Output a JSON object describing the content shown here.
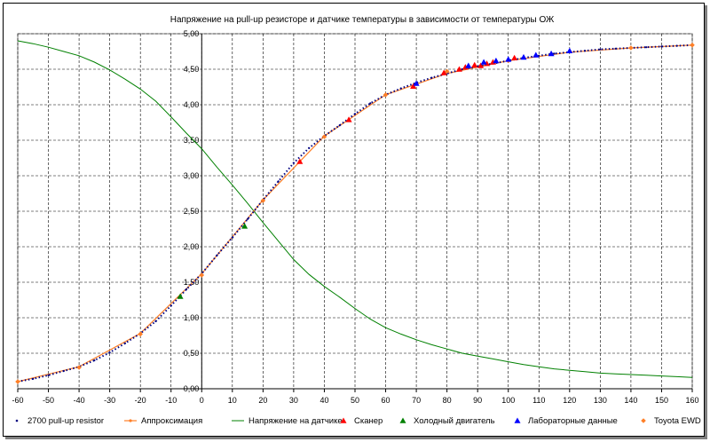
{
  "chart_data": {
    "type": "scatter",
    "title": "Напряжение на pull-up резисторе и датчике температуры в зависимости от температуры ОЖ",
    "xlim": [
      -60,
      160
    ],
    "ylim": [
      0,
      5
    ],
    "x_ticks": [
      -60,
      -50,
      -40,
      -30,
      -20,
      -10,
      0,
      10,
      20,
      30,
      40,
      50,
      60,
      70,
      80,
      90,
      100,
      110,
      120,
      130,
      140,
      150,
      160
    ],
    "y_ticks": [
      "0,00",
      "0,50",
      "1,00",
      "1,50",
      "2,00",
      "2,50",
      "3,00",
      "3,50",
      "4,00",
      "4,50",
      "5,00"
    ],
    "grid": true,
    "legend_position": "bottom",
    "series": [
      {
        "name": "2700 pull-up resistor",
        "style": "dotted",
        "color": "#000080",
        "x": [
          -60,
          -55,
          -50,
          -45,
          -40,
          -35,
          -30,
          -25,
          -20,
          -15,
          -10,
          -5,
          0,
          5,
          10,
          15,
          20,
          25,
          30,
          35,
          40,
          45,
          50,
          55,
          60,
          65,
          70,
          75,
          80,
          85,
          90,
          95,
          100,
          105,
          110,
          115,
          120,
          125,
          130,
          135,
          140,
          145,
          150,
          155,
          160
        ],
        "y": [
          0.1,
          0.14,
          0.19,
          0.25,
          0.31,
          0.4,
          0.51,
          0.64,
          0.78,
          0.95,
          1.17,
          1.4,
          1.62,
          1.88,
          2.13,
          2.39,
          2.66,
          2.92,
          3.18,
          3.39,
          3.56,
          3.71,
          3.87,
          4.02,
          4.14,
          4.23,
          4.31,
          4.38,
          4.44,
          4.5,
          4.54,
          4.58,
          4.62,
          4.66,
          4.69,
          4.72,
          4.74,
          4.76,
          4.78,
          4.79,
          4.8,
          4.81,
          4.82,
          4.83,
          4.84
        ]
      },
      {
        "name": "Аппроксимация",
        "style": "line-markers",
        "color": "#ff7f27",
        "x": [
          -60,
          -40,
          -20,
          0,
          20,
          40,
          60,
          80,
          100,
          120,
          140,
          160
        ],
        "y": [
          0.1,
          0.31,
          0.78,
          1.62,
          2.66,
          3.56,
          4.14,
          4.44,
          4.62,
          4.74,
          4.8,
          4.84
        ]
      },
      {
        "name": "Напряжение на датчике",
        "style": "line",
        "color": "#008000",
        "x": [
          -60,
          -55,
          -50,
          -45,
          -40,
          -35,
          -30,
          -25,
          -20,
          -15,
          -10,
          -5,
          0,
          5,
          10,
          15,
          20,
          25,
          30,
          35,
          40,
          45,
          50,
          55,
          60,
          65,
          70,
          75,
          80,
          85,
          90,
          95,
          100,
          105,
          110,
          115,
          120,
          125,
          130,
          135,
          140,
          145,
          150,
          155,
          160
        ],
        "y": [
          4.9,
          4.86,
          4.81,
          4.75,
          4.69,
          4.6,
          4.49,
          4.36,
          4.22,
          4.05,
          3.83,
          3.6,
          3.38,
          3.12,
          2.87,
          2.61,
          2.34,
          2.08,
          1.82,
          1.61,
          1.44,
          1.29,
          1.13,
          0.98,
          0.86,
          0.77,
          0.69,
          0.62,
          0.56,
          0.5,
          0.46,
          0.42,
          0.38,
          0.34,
          0.31,
          0.28,
          0.26,
          0.24,
          0.22,
          0.21,
          0.2,
          0.19,
          0.18,
          0.17,
          0.16
        ]
      },
      {
        "name": "Сканер",
        "style": "triangles",
        "color": "#ff0000",
        "x": [
          32,
          48,
          69,
          79,
          84,
          86,
          89,
          91,
          93,
          95,
          102
        ],
        "y": [
          3.2,
          3.79,
          4.26,
          4.45,
          4.5,
          4.53,
          4.56,
          4.55,
          4.58,
          4.6,
          4.66
        ]
      },
      {
        "name": "Холодный двигатель",
        "style": "triangles",
        "color": "#008000",
        "x": [
          -7,
          14
        ],
        "y": [
          1.3,
          2.29
        ]
      },
      {
        "name": "Лабораторные данные",
        "style": "triangles",
        "color": "#0000ff",
        "x": [
          70,
          87,
          92,
          96,
          100,
          105,
          109,
          114,
          120
        ],
        "y": [
          4.3,
          4.55,
          4.6,
          4.62,
          4.64,
          4.67,
          4.7,
          4.72,
          4.76
        ]
      },
      {
        "name": "Toyota EWD",
        "style": "diamonds",
        "color": "#ff7f27",
        "x": [
          -60,
          -40,
          -20,
          0,
          20,
          40,
          60,
          80,
          100,
          140,
          160
        ],
        "y": [
          0.1,
          0.3,
          0.77,
          1.6,
          2.65,
          3.55,
          4.14,
          4.47,
          4.62,
          4.8,
          4.84
        ]
      }
    ]
  }
}
